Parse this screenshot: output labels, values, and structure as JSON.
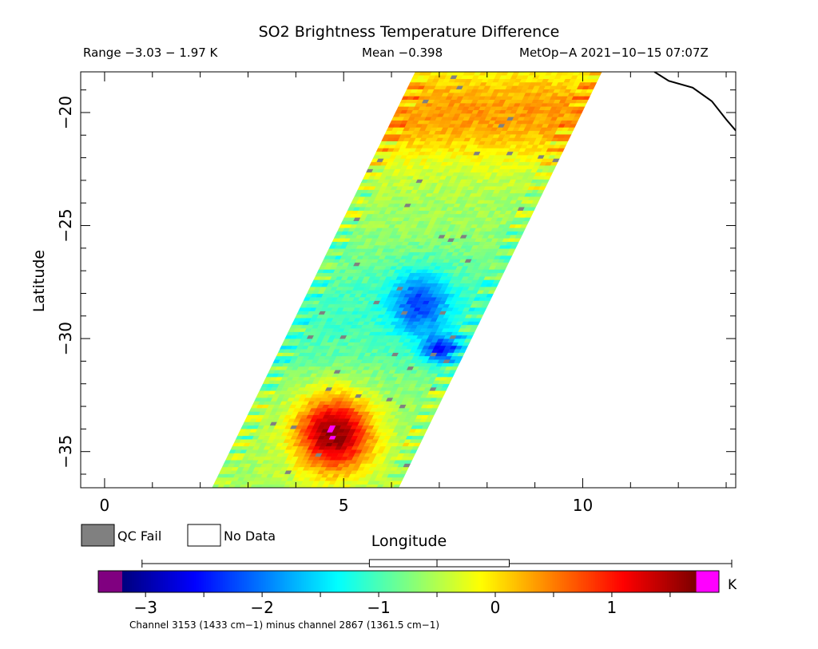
{
  "chart_data": {
    "type": "heatmap",
    "title": "SO2 Brightness Temperature Difference",
    "header": {
      "range": "Range −3.03 − 1.97 K",
      "mean": "Mean −0.398",
      "satellite": "MetOp−A 2021−10−15 07:07Z"
    },
    "xlabel": "Longitude",
    "ylabel": "Latitude",
    "xlim": [
      -0.5,
      13.2
    ],
    "ylim": [
      -36.6,
      -18.2
    ],
    "x_ticks": [
      0,
      5,
      10
    ],
    "x_tick_labels": [
      "0",
      "5",
      "10"
    ],
    "y_ticks": [
      -20,
      -25,
      -30,
      -35
    ],
    "y_tick_labels": [
      "−20",
      "−25",
      "−30",
      "−35"
    ],
    "legend": [
      {
        "label": "QC Fail",
        "color": "#808080"
      },
      {
        "label": "No Data",
        "color": "#ffffff"
      }
    ],
    "colorbar": {
      "range": [
        -3.2,
        1.72
      ],
      "ticks": [
        -3,
        -2,
        -1,
        0,
        1
      ],
      "tick_labels": [
        "−3",
        "−2",
        "−1",
        "0",
        "1"
      ],
      "unit": "K",
      "under_color": "#800080",
      "over_color": "#ff00ff",
      "boxplot": {
        "whisker_low": -3.03,
        "q1": -1.08,
        "median": -0.5,
        "q3": 0.12,
        "whisker_high": 1.97
      }
    },
    "footnote": "Channel 3153 (1433 cm−1) minus channel 2867 (1361.5 cm−1)",
    "swath": {
      "lat_range": [
        -36.6,
        -18.2
      ],
      "center_lon_at_lat": [
        [
          -36.6,
          4.2
        ],
        [
          -18.2,
          8.45
        ]
      ],
      "half_width_deg": 1.95
    },
    "features": [
      {
        "name": "plume-south",
        "lat": -34.2,
        "lon": 4.8,
        "value": 1.3
      },
      {
        "name": "low-region",
        "lat": -28.4,
        "lon": 6.6,
        "value": -1.9
      },
      {
        "name": "low-spot",
        "lat": -30.5,
        "lon": 7.05,
        "value": -2.2
      }
    ],
    "coastline": [
      [
        11.5,
        -18.2
      ],
      [
        11.8,
        -18.6
      ],
      [
        12.3,
        -18.9
      ],
      [
        12.7,
        -19.5
      ],
      [
        13.0,
        -20.3
      ],
      [
        13.2,
        -20.8
      ]
    ]
  }
}
